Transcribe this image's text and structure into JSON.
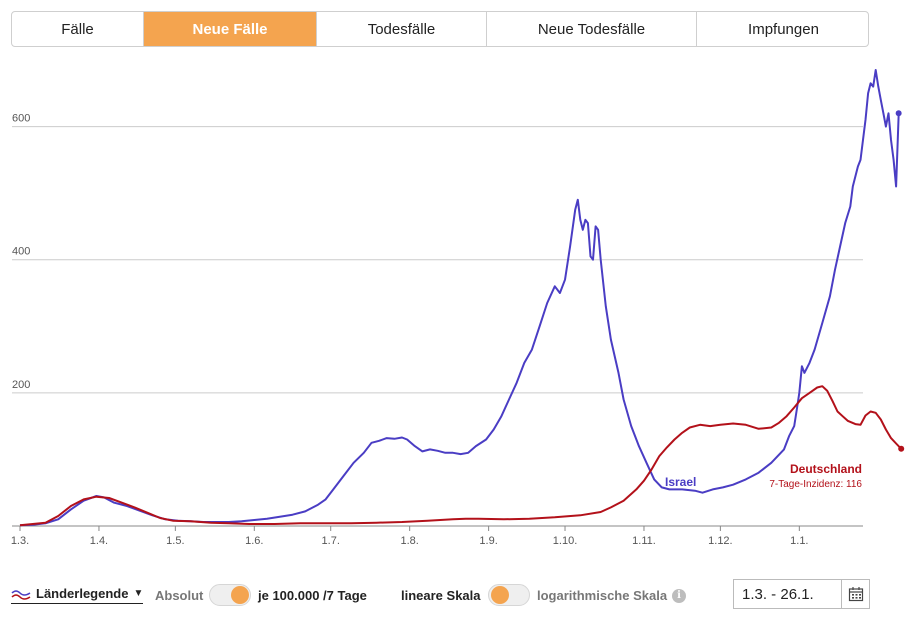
{
  "tabs": [
    {
      "label": "Fälle",
      "active": false
    },
    {
      "label": "Neue Fälle",
      "active": true
    },
    {
      "label": "Todesfälle",
      "active": false
    },
    {
      "label": "Neue Todesfälle",
      "active": false
    },
    {
      "label": "Impfungen",
      "active": false
    }
  ],
  "colors": {
    "accent": "#f4a44f",
    "israel": "#4a3dc4",
    "deutschland": "#b3111a",
    "grid": "#cccccc"
  },
  "chart_data": {
    "type": "line",
    "title": "",
    "xlabel": "",
    "ylabel": "",
    "ylim": [
      0,
      700
    ],
    "yticks": [
      200,
      400,
      600
    ],
    "grid": true,
    "xtick_labels": [
      "1.3.",
      "1.4.",
      "1.5.",
      "1.6.",
      "1.7.",
      "1.8.",
      "1.9.",
      "1.10.",
      "1.11.",
      "1.12.",
      "1.1."
    ],
    "xtick_days": [
      0,
      31,
      61,
      92,
      122,
      153,
      184,
      214,
      245,
      275,
      306
    ],
    "x_end_day": 331,
    "series": [
      {
        "name": "Israel",
        "color": "#4a3dc4",
        "points": [
          [
            0,
            1
          ],
          [
            5,
            2
          ],
          [
            10,
            4
          ],
          [
            15,
            10
          ],
          [
            20,
            25
          ],
          [
            25,
            38
          ],
          [
            30,
            45
          ],
          [
            33,
            43
          ],
          [
            37,
            35
          ],
          [
            42,
            30
          ],
          [
            47,
            23
          ],
          [
            52,
            16
          ],
          [
            57,
            10
          ],
          [
            62,
            8
          ],
          [
            67,
            7
          ],
          [
            72,
            6
          ],
          [
            77,
            6
          ],
          [
            82,
            6
          ],
          [
            87,
            7
          ],
          [
            92,
            9
          ],
          [
            97,
            11
          ],
          [
            102,
            14
          ],
          [
            107,
            17
          ],
          [
            112,
            22
          ],
          [
            117,
            32
          ],
          [
            120,
            40
          ],
          [
            123,
            55
          ],
          [
            127,
            75
          ],
          [
            131,
            95
          ],
          [
            135,
            110
          ],
          [
            138,
            125
          ],
          [
            141,
            128
          ],
          [
            144,
            132
          ],
          [
            147,
            131
          ],
          [
            150,
            133
          ],
          [
            152,
            130
          ],
          [
            155,
            120
          ],
          [
            158,
            112
          ],
          [
            161,
            115
          ],
          [
            164,
            113
          ],
          [
            167,
            110
          ],
          [
            170,
            110
          ],
          [
            173,
            108
          ],
          [
            176,
            110
          ],
          [
            179,
            120
          ],
          [
            183,
            130
          ],
          [
            186,
            145
          ],
          [
            189,
            165
          ],
          [
            192,
            190
          ],
          [
            195,
            215
          ],
          [
            198,
            245
          ],
          [
            201,
            265
          ],
          [
            204,
            300
          ],
          [
            207,
            335
          ],
          [
            210,
            360
          ],
          [
            212,
            350
          ],
          [
            214,
            370
          ],
          [
            216,
            420
          ],
          [
            218,
            475
          ],
          [
            219,
            490
          ],
          [
            220,
            460
          ],
          [
            221,
            445
          ],
          [
            222,
            460
          ],
          [
            223,
            455
          ],
          [
            224,
            405
          ],
          [
            225,
            400
          ],
          [
            226,
            450
          ],
          [
            227,
            445
          ],
          [
            228,
            400
          ],
          [
            230,
            330
          ],
          [
            232,
            280
          ],
          [
            235,
            230
          ],
          [
            237,
            190
          ],
          [
            240,
            150
          ],
          [
            243,
            120
          ],
          [
            246,
            95
          ],
          [
            249,
            70
          ],
          [
            252,
            58
          ],
          [
            255,
            55
          ],
          [
            260,
            55
          ],
          [
            265,
            53
          ],
          [
            268,
            50
          ],
          [
            272,
            55
          ],
          [
            276,
            58
          ],
          [
            280,
            62
          ],
          [
            285,
            70
          ],
          [
            290,
            80
          ],
          [
            295,
            95
          ],
          [
            300,
            115
          ],
          [
            302,
            135
          ],
          [
            304,
            150
          ],
          [
            305,
            175
          ],
          [
            306,
            200
          ],
          [
            307,
            240
          ],
          [
            308,
            230
          ],
          [
            310,
            245
          ],
          [
            312,
            265
          ],
          [
            315,
            305
          ],
          [
            318,
            345
          ],
          [
            320,
            385
          ],
          [
            322,
            420
          ],
          [
            324,
            455
          ],
          [
            326,
            480
          ],
          [
            327,
            510
          ],
          [
            329,
            540
          ],
          [
            330,
            550
          ],
          [
            331,
            580
          ],
          [
            332,
            610
          ],
          [
            333,
            650
          ],
          [
            334,
            665
          ],
          [
            335,
            660
          ],
          [
            336,
            685
          ],
          [
            337,
            660
          ],
          [
            338,
            640
          ],
          [
            339,
            620
          ],
          [
            340,
            600
          ],
          [
            341,
            620
          ],
          [
            342,
            580
          ],
          [
            343,
            550
          ],
          [
            344,
            510
          ],
          [
            345,
            620
          ]
        ]
      },
      {
        "name": "Deutschland",
        "color": "#b3111a",
        "points": [
          [
            0,
            1
          ],
          [
            10,
            5
          ],
          [
            15,
            15
          ],
          [
            20,
            30
          ],
          [
            25,
            40
          ],
          [
            30,
            44
          ],
          [
            35,
            42
          ],
          [
            40,
            35
          ],
          [
            45,
            28
          ],
          [
            50,
            20
          ],
          [
            55,
            12
          ],
          [
            60,
            8
          ],
          [
            67,
            7
          ],
          [
            75,
            5
          ],
          [
            82,
            4
          ],
          [
            90,
            3
          ],
          [
            100,
            3
          ],
          [
            110,
            4
          ],
          [
            120,
            4
          ],
          [
            130,
            4
          ],
          [
            140,
            5
          ],
          [
            150,
            6
          ],
          [
            160,
            8
          ],
          [
            170,
            10
          ],
          [
            175,
            11
          ],
          [
            180,
            11
          ],
          [
            190,
            10
          ],
          [
            200,
            11
          ],
          [
            210,
            13
          ],
          [
            220,
            16
          ],
          [
            228,
            21
          ],
          [
            232,
            28
          ],
          [
            237,
            38
          ],
          [
            242,
            55
          ],
          [
            245,
            68
          ],
          [
            248,
            85
          ],
          [
            251,
            105
          ],
          [
            254,
            118
          ],
          [
            257,
            130
          ],
          [
            260,
            140
          ],
          [
            263,
            148
          ],
          [
            267,
            152
          ],
          [
            271,
            150
          ],
          [
            275,
            152
          ],
          [
            280,
            154
          ],
          [
            285,
            152
          ],
          [
            290,
            146
          ],
          [
            295,
            148
          ],
          [
            298,
            155
          ],
          [
            301,
            165
          ],
          [
            304,
            178
          ],
          [
            307,
            192
          ],
          [
            310,
            200
          ],
          [
            313,
            208
          ],
          [
            315,
            210
          ],
          [
            317,
            203
          ],
          [
            319,
            188
          ],
          [
            321,
            172
          ],
          [
            323,
            165
          ],
          [
            325,
            158
          ],
          [
            328,
            153
          ],
          [
            330,
            152
          ],
          [
            332,
            166
          ],
          [
            334,
            172
          ],
          [
            336,
            170
          ],
          [
            338,
            160
          ],
          [
            340,
            145
          ],
          [
            342,
            132
          ],
          [
            344,
            124
          ],
          [
            346,
            116
          ]
        ]
      }
    ],
    "annotations": {
      "israel_label": "Israel",
      "deutschland_label": "Deutschland",
      "deutschland_sub": "7-Tage-Inzidenz: 116"
    }
  },
  "controls": {
    "legend_label": "Länderlegende",
    "absolut_label": "Absolut",
    "per100k_label": "je 100.000 /7 Tage",
    "linear_label": "lineare Skala",
    "log_label": "logarithmische Skala",
    "info_symbol": "i",
    "date_range": "1.3. - 26.1.",
    "calendar_icon": "calendar-icon"
  }
}
